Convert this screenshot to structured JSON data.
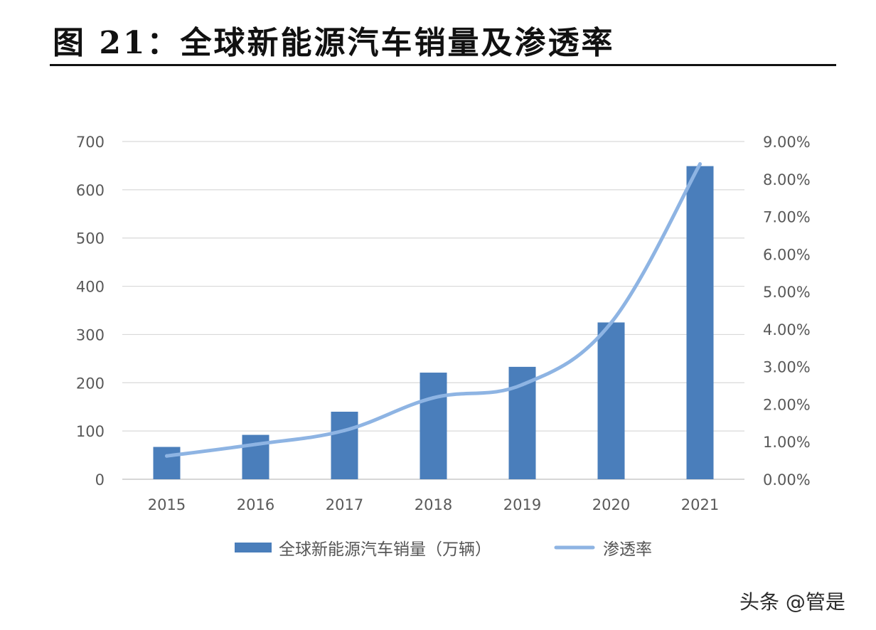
{
  "title": "图 21：全球新能源汽车销量及渗透率",
  "watermark": "头条 @管是",
  "chart_data": {
    "type": "bar",
    "categories": [
      "2015",
      "2016",
      "2017",
      "2018",
      "2019",
      "2020",
      "2021"
    ],
    "series": [
      {
        "name": "全球新能源汽车销量（万辆）",
        "type": "bar",
        "axis": "left",
        "values": [
          67,
          92,
          140,
          221,
          233,
          325,
          649
        ],
        "color": "#4a7ebb"
      },
      {
        "name": "渗透率",
        "type": "line",
        "axis": "right",
        "values": [
          0.62,
          0.93,
          1.3,
          2.17,
          2.52,
          4.17,
          8.4
        ],
        "unit": "%",
        "color": "#8eb4e3"
      }
    ],
    "y_left": {
      "min": 0,
      "max": 700,
      "ticks": [
        "0",
        "100",
        "200",
        "300",
        "400",
        "500",
        "600",
        "700"
      ]
    },
    "y_right": {
      "min": 0,
      "max": 9,
      "ticks": [
        "0.00%",
        "1.00%",
        "2.00%",
        "3.00%",
        "4.00%",
        "5.00%",
        "6.00%",
        "7.00%",
        "8.00%",
        "9.00%"
      ]
    },
    "grid": true,
    "legend_position": "bottom"
  }
}
